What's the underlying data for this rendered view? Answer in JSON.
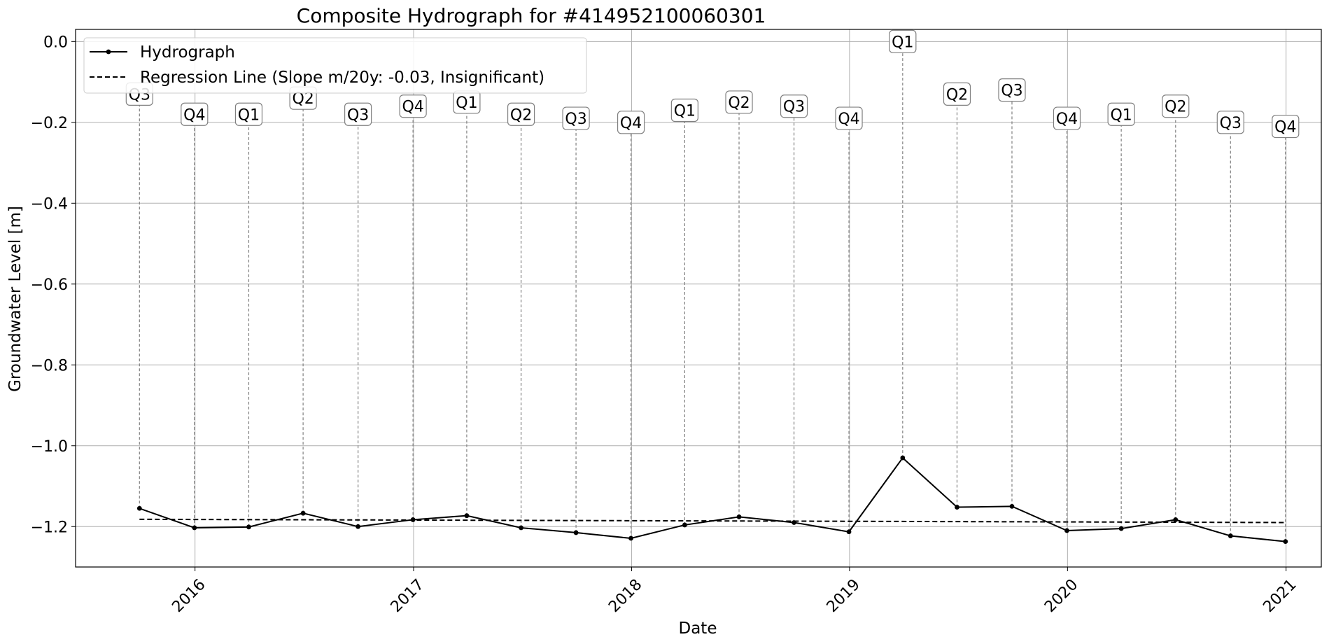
{
  "chart_data": {
    "type": "line",
    "title": "Composite Hydrograph for  #414952100060301",
    "xlabel": "Date",
    "ylabel": "Groundwater Level [m]",
    "x_type": "date",
    "xlim": [
      "2015-06-15",
      "2021-03-01"
    ],
    "ylim": [
      -1.3,
      0.03
    ],
    "xticks": [
      "2016-01-01",
      "2017-01-01",
      "2018-01-01",
      "2019-01-01",
      "2020-01-01",
      "2021-01-01"
    ],
    "xtick_labels": [
      "2016",
      "2017",
      "2018",
      "2019",
      "2020",
      "2021"
    ],
    "yticks": [
      0.0,
      -0.2,
      -0.4,
      -0.6,
      -0.8,
      -1.0,
      -1.2
    ],
    "ytick_labels": [
      "0.0",
      "−0.2",
      "−0.4",
      "−0.6",
      "−0.8",
      "−1.0",
      "−1.2"
    ],
    "grid": true,
    "legend_position": "top-left",
    "series": [
      {
        "name": "Hydrograph",
        "style": "solid line with dot markers",
        "color": "#000000",
        "x": [
          "2015-09-30",
          "2015-12-31",
          "2016-03-31",
          "2016-06-30",
          "2016-09-30",
          "2016-12-31",
          "2017-03-31",
          "2017-06-30",
          "2017-09-30",
          "2017-12-31",
          "2018-03-31",
          "2018-06-30",
          "2018-09-30",
          "2018-12-31",
          "2019-03-31",
          "2019-06-30",
          "2019-09-30",
          "2019-12-31",
          "2020-03-31",
          "2020-06-30",
          "2020-09-30",
          "2020-12-31"
        ],
        "y": [
          -1.155,
          -1.203,
          -1.201,
          -1.167,
          -1.2,
          -1.183,
          -1.173,
          -1.203,
          -1.215,
          -1.229,
          -1.196,
          -1.176,
          -1.19,
          -1.213,
          -1.03,
          -1.152,
          -1.15,
          -1.21,
          -1.205,
          -1.183,
          -1.223,
          -1.237
        ]
      },
      {
        "name": "Regression Line (Slope m/20y: -0.03, Insignificant)",
        "style": "dashed line",
        "color": "#000000",
        "x": [
          "2015-09-30",
          "2020-12-31"
        ],
        "y": [
          -1.182,
          -1.19
        ]
      }
    ],
    "annotations": {
      "style": "boxed quarter label joined to each data point by a gray dashed vertical line",
      "connector_color": "#808080",
      "box_edge_color": "#808080",
      "labels": [
        "Q3",
        "Q4",
        "Q1",
        "Q2",
        "Q3",
        "Q4",
        "Q1",
        "Q2",
        "Q3",
        "Q4",
        "Q1",
        "Q2",
        "Q3",
        "Q4",
        "Q1",
        "Q2",
        "Q3",
        "Q4",
        "Q1",
        "Q2",
        "Q3",
        "Q4"
      ],
      "label_y": [
        -0.13,
        -0.18,
        -0.18,
        -0.14,
        -0.18,
        -0.16,
        -0.15,
        -0.18,
        -0.19,
        -0.2,
        -0.17,
        -0.15,
        -0.16,
        -0.19,
        0.0,
        -0.13,
        -0.12,
        -0.19,
        -0.18,
        -0.16,
        -0.2,
        -0.21
      ]
    }
  }
}
